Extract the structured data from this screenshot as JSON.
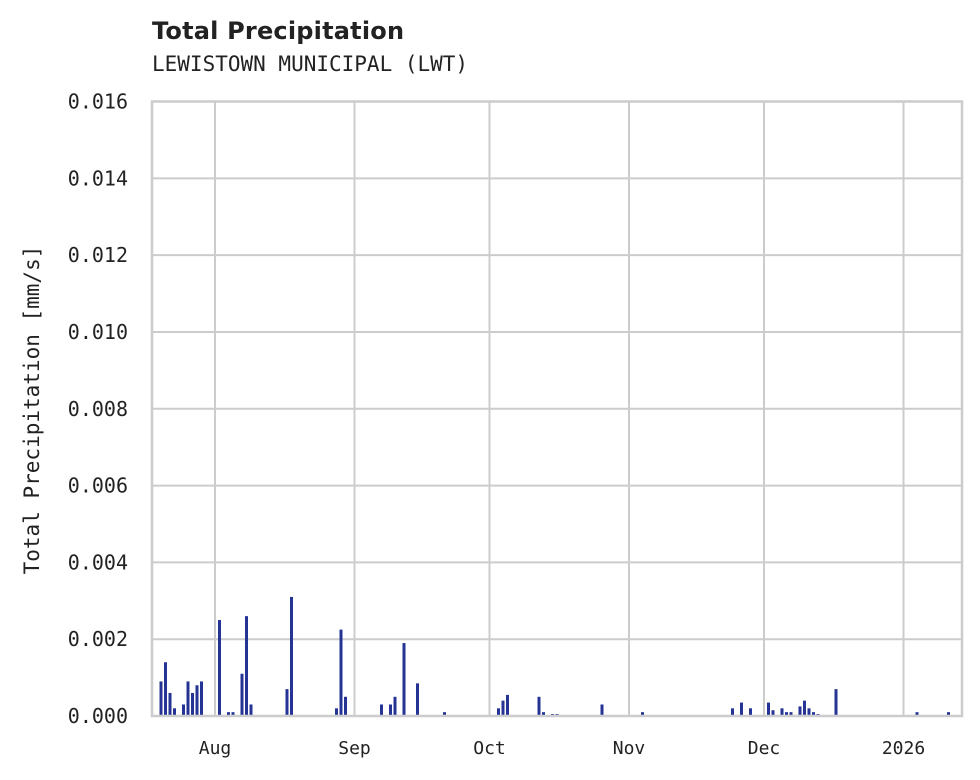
{
  "chart_data": {
    "type": "bar",
    "title": "Total Precipitation",
    "subtitle": "LEWISTOWN MUNICIPAL (LWT)",
    "xlabel": "",
    "ylabel": "Total Precipitation [mm/s]",
    "ylim": [
      0,
      0.016
    ],
    "yticks": [
      "0.000",
      "0.002",
      "0.004",
      "0.006",
      "0.008",
      "0.010",
      "0.012",
      "0.014",
      "0.016"
    ],
    "xticks": [
      "Aug",
      "Sep",
      "Oct",
      "Nov",
      "Dec",
      "2026"
    ],
    "xrange": [
      "2025-07-18",
      "2026-01-14"
    ],
    "grid": true,
    "legend": null,
    "bar_color": "#253494",
    "x": [
      "2025-07-20",
      "2025-07-21",
      "2025-07-22",
      "2025-07-23",
      "2025-07-25",
      "2025-07-26",
      "2025-07-27",
      "2025-07-28",
      "2025-07-29",
      "2025-08-02",
      "2025-08-04",
      "2025-08-05",
      "2025-08-07",
      "2025-08-08",
      "2025-08-09",
      "2025-08-17",
      "2025-08-18",
      "2025-08-28",
      "2025-08-29",
      "2025-08-30",
      "2025-09-07",
      "2025-09-09",
      "2025-09-10",
      "2025-09-12",
      "2025-09-15",
      "2025-09-21",
      "2025-10-03",
      "2025-10-04",
      "2025-10-05",
      "2025-10-12",
      "2025-10-13",
      "2025-10-15",
      "2025-10-16",
      "2025-10-26",
      "2025-11-04",
      "2025-11-24",
      "2025-11-26",
      "2025-11-28",
      "2025-12-02",
      "2025-12-03",
      "2025-12-05",
      "2025-12-06",
      "2025-12-07",
      "2025-12-09",
      "2025-12-10",
      "2025-12-11",
      "2025-12-12",
      "2025-12-13",
      "2025-12-17",
      "2026-01-04",
      "2026-01-11"
    ],
    "values": [
      0.0009,
      0.0014,
      0.0006,
      0.0002,
      0.0003,
      0.0009,
      0.0006,
      0.0008,
      0.0009,
      0.0025,
      0.0001,
      0.0001,
      0.0011,
      0.0026,
      0.0003,
      0.0007,
      0.0031,
      0.0002,
      0.00225,
      0.0005,
      0.0003,
      0.0003,
      0.0005,
      0.0019,
      0.00085,
      0.0001,
      0.0002,
      0.0004,
      0.00055,
      0.0005,
      0.0001,
      5e-05,
      5e-05,
      0.0003,
      0.0001,
      0.0002,
      0.00035,
      0.0002,
      0.00035,
      0.00015,
      0.0002,
      0.0001,
      0.0001,
      0.00025,
      0.0004,
      0.0002,
      0.0001,
      5e-05,
      0.0007,
      0.0001,
      0.0001
    ]
  }
}
